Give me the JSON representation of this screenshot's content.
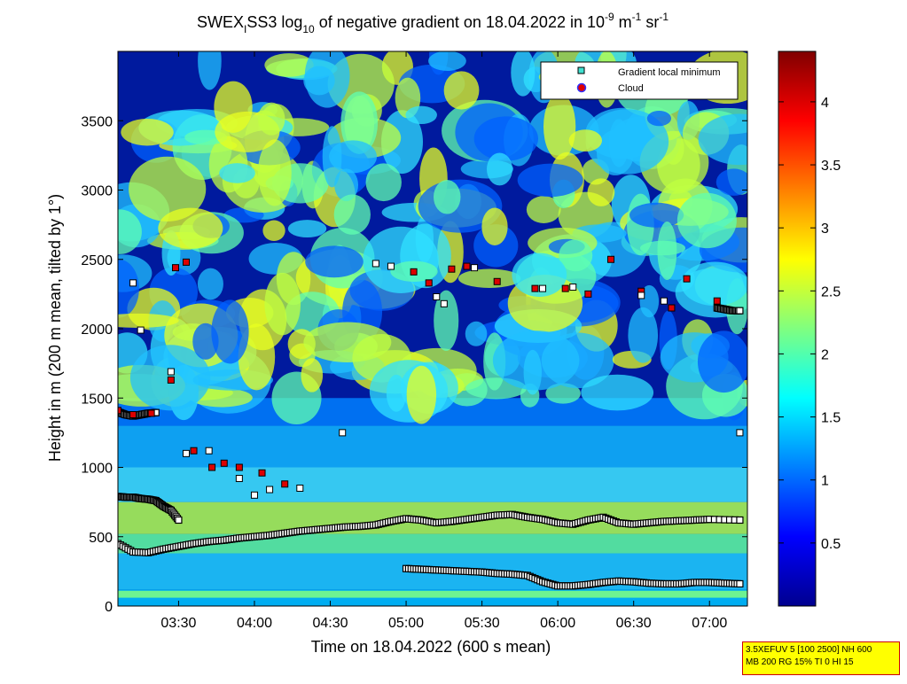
{
  "chart_data": {
    "type": "heatmap",
    "title": {
      "prefix": "SWEX",
      "sub1": "I",
      "mid": "SS3 log",
      "sub2": "10",
      "text": " of negative gradient on 18.04.2022 in 10",
      "sup1": "-9",
      "unit1": " m",
      "sup2": "-1",
      "unit2": " sr",
      "sup3": "-1"
    },
    "xlabel": "Time on 18.04.2022 (600 s mean)",
    "ylabel": "Height in m (200 m mean, tilted by 1°)",
    "xlim_hours": [
      3.1,
      7.25
    ],
    "ylim": [
      0,
      4000
    ],
    "x_ticks": [
      {
        "value": 3.5,
        "label": "03:30"
      },
      {
        "value": 4.0,
        "label": "04:00"
      },
      {
        "value": 4.5,
        "label": "04:30"
      },
      {
        "value": 5.0,
        "label": "05:00"
      },
      {
        "value": 5.5,
        "label": "05:30"
      },
      {
        "value": 6.0,
        "label": "06:00"
      },
      {
        "value": 6.5,
        "label": "06:30"
      },
      {
        "value": 7.0,
        "label": "07:00"
      }
    ],
    "y_ticks": [
      0,
      500,
      1000,
      1500,
      2000,
      2500,
      3000,
      3500
    ],
    "colorbar": {
      "min": 0,
      "max": 4.4,
      "ticks": [
        "0.5",
        "1",
        "1.5",
        "2",
        "2.5",
        "3",
        "3.5",
        "4"
      ],
      "colormap": "jet"
    },
    "legend": {
      "placement": "top-right",
      "entries": [
        {
          "label": "Gradient local minimum",
          "marker": "square",
          "color": "#40e0d0"
        },
        {
          "label": "Cloud",
          "marker": "circle",
          "color": "#dd0000"
        }
      ]
    },
    "series": [
      {
        "kind": "gradient-minimum-line",
        "points": [
          [
            3.1,
            450
          ],
          [
            3.2,
            390
          ],
          [
            3.3,
            385
          ],
          [
            3.4,
            410
          ],
          [
            3.5,
            430
          ],
          [
            3.6,
            450
          ],
          [
            3.7,
            465
          ],
          [
            3.8,
            475
          ],
          [
            3.9,
            490
          ],
          [
            4.0,
            500
          ],
          [
            4.1,
            510
          ],
          [
            4.2,
            525
          ],
          [
            4.3,
            540
          ],
          [
            4.4,
            550
          ],
          [
            4.5,
            560
          ],
          [
            4.6,
            570
          ],
          [
            4.7,
            575
          ],
          [
            4.8,
            585
          ],
          [
            4.9,
            610
          ],
          [
            5.0,
            630
          ],
          [
            5.1,
            620
          ],
          [
            5.2,
            600
          ],
          [
            5.3,
            610
          ],
          [
            5.4,
            625
          ],
          [
            5.5,
            640
          ],
          [
            5.6,
            655
          ],
          [
            5.7,
            660
          ],
          [
            5.8,
            640
          ],
          [
            5.9,
            625
          ],
          [
            6.0,
            600
          ],
          [
            6.1,
            590
          ],
          [
            6.2,
            620
          ],
          [
            6.3,
            640
          ],
          [
            6.4,
            600
          ],
          [
            6.5,
            590
          ],
          [
            6.6,
            600
          ],
          [
            6.7,
            610
          ],
          [
            6.8,
            615
          ],
          [
            6.9,
            620
          ],
          [
            7.0,
            625
          ],
          [
            7.2,
            620
          ]
        ]
      },
      {
        "kind": "gradient-minimum-line",
        "points": [
          [
            5.0,
            270
          ],
          [
            5.1,
            265
          ],
          [
            5.2,
            260
          ],
          [
            5.3,
            255
          ],
          [
            5.4,
            250
          ],
          [
            5.5,
            245
          ],
          [
            5.6,
            235
          ],
          [
            5.7,
            230
          ],
          [
            5.8,
            220
          ],
          [
            5.9,
            175
          ],
          [
            6.0,
            145
          ],
          [
            6.1,
            145
          ],
          [
            6.2,
            155
          ],
          [
            6.3,
            170
          ],
          [
            6.4,
            180
          ],
          [
            6.5,
            175
          ],
          [
            6.6,
            165
          ],
          [
            6.7,
            160
          ],
          [
            6.8,
            160
          ],
          [
            6.9,
            170
          ],
          [
            7.0,
            170
          ],
          [
            7.1,
            165
          ],
          [
            7.2,
            160
          ]
        ]
      },
      {
        "kind": "gradient-minimum-line",
        "points": [
          [
            3.1,
            790
          ],
          [
            3.15,
            785
          ],
          [
            3.2,
            785
          ],
          [
            3.25,
            775
          ],
          [
            3.3,
            770
          ],
          [
            3.35,
            760
          ],
          [
            3.4,
            720
          ],
          [
            3.45,
            690
          ],
          [
            3.5,
            620
          ]
        ]
      },
      {
        "kind": "gradient-minimum-line",
        "points": [
          [
            3.1,
            1400
          ],
          [
            3.15,
            1380
          ],
          [
            3.2,
            1370
          ],
          [
            3.25,
            1380
          ],
          [
            3.3,
            1390
          ],
          [
            3.35,
            1395
          ]
        ]
      },
      {
        "kind": "gradient-minimum-line",
        "points": [
          [
            7.05,
            2150
          ],
          [
            7.1,
            2140
          ],
          [
            7.15,
            2130
          ],
          [
            7.2,
            2130
          ]
        ]
      },
      {
        "kind": "cloud-points",
        "points": [
          [
            3.1,
            1410
          ],
          [
            3.2,
            1380
          ],
          [
            3.32,
            1390
          ],
          [
            3.45,
            1630
          ],
          [
            3.55,
            2480
          ],
          [
            3.48,
            2440
          ],
          [
            3.6,
            1120
          ],
          [
            3.72,
            1000
          ],
          [
            3.8,
            1030
          ],
          [
            3.9,
            1000
          ],
          [
            4.05,
            960
          ],
          [
            4.2,
            880
          ],
          [
            5.05,
            2410
          ],
          [
            5.15,
            2330
          ],
          [
            5.3,
            2430
          ],
          [
            5.4,
            2450
          ],
          [
            5.6,
            2340
          ],
          [
            5.85,
            2290
          ],
          [
            6.05,
            2290
          ],
          [
            6.2,
            2250
          ],
          [
            6.35,
            2500
          ],
          [
            6.55,
            2270
          ],
          [
            6.75,
            2150
          ],
          [
            6.85,
            2360
          ],
          [
            7.05,
            2200
          ]
        ]
      },
      {
        "kind": "gradient-minimum-points",
        "points": [
          [
            3.2,
            2330
          ],
          [
            3.25,
            1990
          ],
          [
            3.45,
            1690
          ],
          [
            3.55,
            1100
          ],
          [
            3.7,
            1120
          ],
          [
            3.9,
            920
          ],
          [
            4.0,
            800
          ],
          [
            4.1,
            840
          ],
          [
            4.3,
            850
          ],
          [
            4.58,
            1250
          ],
          [
            4.8,
            2470
          ],
          [
            4.9,
            2450
          ],
          [
            5.2,
            2230
          ],
          [
            5.25,
            2180
          ],
          [
            5.45,
            2440
          ],
          [
            5.9,
            2290
          ],
          [
            6.1,
            2300
          ],
          [
            6.55,
            2240
          ],
          [
            6.7,
            2200
          ],
          [
            7.2,
            1250
          ]
        ]
      }
    ]
  },
  "info_box": {
    "line1": "3.5XEFUV 5 [100 2500] NH 600",
    "line2": "MB 200 RG 15% TI 0 HI 15"
  }
}
